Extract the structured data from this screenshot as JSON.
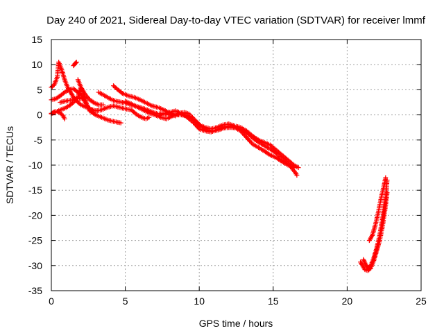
{
  "chart_data": {
    "type": "scatter",
    "title": "Day 240 of 2021, Sidereal Day-to-day VTEC variation (SDTVAR) for receiver lmmf",
    "xlabel": "GPS time / hours",
    "ylabel": "SDTVAR / TECUs",
    "xlim": [
      0,
      25
    ],
    "ylim": [
      -35,
      15
    ],
    "xticks": [
      0,
      5,
      10,
      15,
      20,
      25
    ],
    "yticks": [
      15,
      10,
      5,
      0,
      -5,
      -10,
      -15,
      -20,
      -25,
      -30,
      -35
    ],
    "grid": true,
    "marker": "+",
    "series": [
      {
        "name": "SDTVAR",
        "color": "#ff0000",
        "tracks": [
          [
            [
              0.0,
              5.5
            ],
            [
              0.2,
              6.0
            ],
            [
              0.4,
              7.5
            ],
            [
              0.5,
              10.5
            ],
            [
              0.7,
              9.0
            ],
            [
              0.9,
              7.0
            ],
            [
              1.1,
              5.5
            ],
            [
              1.3,
              4.5
            ],
            [
              1.5,
              3.5
            ],
            [
              1.7,
              2.8
            ],
            [
              2.0,
              2.0
            ],
            [
              2.3,
              1.6
            ],
            [
              2.6,
              1.3
            ]
          ],
          [
            [
              0.0,
              3.0
            ],
            [
              0.3,
              3.2
            ],
            [
              0.6,
              3.8
            ],
            [
              0.9,
              4.5
            ],
            [
              1.2,
              5.0
            ],
            [
              1.5,
              5.2
            ],
            [
              1.8,
              4.5
            ],
            [
              2.0,
              4.0
            ],
            [
              2.2,
              3.0
            ],
            [
              2.4,
              2.0
            ],
            [
              2.6,
              1.2
            ],
            [
              2.9,
              0.8
            ],
            [
              3.2,
              0.9
            ]
          ],
          [
            [
              0.0,
              0.3
            ],
            [
              0.3,
              0.5
            ],
            [
              0.6,
              1.0
            ],
            [
              0.9,
              1.3
            ],
            [
              1.2,
              1.8
            ],
            [
              1.5,
              2.5
            ],
            [
              1.8,
              3.5
            ],
            [
              2.0,
              5.5
            ],
            [
              2.2,
              4.0
            ],
            [
              2.4,
              2.0
            ],
            [
              2.6,
              0.8
            ],
            [
              2.8,
              0.5
            ]
          ],
          [
            [
              0.0,
              0.2
            ],
            [
              0.2,
              0.6
            ],
            [
              0.4,
              0.7
            ],
            [
              0.6,
              0.4
            ],
            [
              0.8,
              -0.2
            ],
            [
              0.9,
              -0.8
            ]
          ],
          [
            [
              1.5,
              9.8
            ],
            [
              1.6,
              10.2
            ],
            [
              1.7,
              10.5
            ]
          ],
          [
            [
              0.6,
              2.5
            ],
            [
              0.9,
              2.7
            ],
            [
              1.2,
              2.9
            ],
            [
              1.5,
              3.0
            ],
            [
              1.8,
              3.3
            ],
            [
              2.1,
              3.2
            ]
          ],
          [
            [
              1.8,
              7.0
            ],
            [
              2.0,
              5.5
            ],
            [
              2.3,
              4.0
            ],
            [
              2.6,
              3.0
            ],
            [
              2.9,
              2.4
            ],
            [
              3.2,
              2.0
            ],
            [
              3.5,
              2.0
            ]
          ],
          [
            [
              3.2,
              4.5
            ],
            [
              3.5,
              4.0
            ],
            [
              3.8,
              3.5
            ],
            [
              4.1,
              3.0
            ],
            [
              4.4,
              2.7
            ],
            [
              4.8,
              2.5
            ],
            [
              5.2,
              2.2
            ],
            [
              5.6,
              1.8
            ],
            [
              6.0,
              1.5
            ],
            [
              6.4,
              1.1
            ],
            [
              6.8,
              0.6
            ],
            [
              7.2,
              0.2
            ],
            [
              7.6,
              0.3
            ],
            [
              8.0,
              0.0
            ],
            [
              8.4,
              -0.2
            ]
          ],
          [
            [
              2.4,
              1.5
            ],
            [
              2.6,
              1.2
            ],
            [
              3.0,
              0.8
            ],
            [
              3.4,
              1.0
            ],
            [
              3.8,
              1.5
            ],
            [
              4.2,
              1.8
            ],
            [
              4.6,
              1.5
            ],
            [
              5.0,
              1.2
            ],
            [
              5.4,
              1.0
            ],
            [
              5.8,
              0.0
            ],
            [
              6.1,
              -0.5
            ],
            [
              6.4,
              -0.8
            ],
            [
              6.6,
              -0.5
            ]
          ],
          [
            [
              2.6,
              0.8
            ],
            [
              3.0,
              0.0
            ],
            [
              3.4,
              -0.5
            ],
            [
              3.8,
              -1.0
            ],
            [
              4.2,
              -1.3
            ],
            [
              4.7,
              -1.6
            ]
          ],
          [
            [
              4.2,
              5.8
            ],
            [
              4.5,
              5.0
            ],
            [
              4.8,
              4.3
            ],
            [
              5.2,
              3.8
            ],
            [
              5.6,
              3.5
            ],
            [
              6.0,
              3.0
            ],
            [
              6.4,
              2.4
            ],
            [
              6.8,
              1.8
            ],
            [
              7.2,
              1.5
            ],
            [
              7.6,
              1.0
            ],
            [
              8.0,
              0.4
            ],
            [
              8.4,
              0.0
            ],
            [
              8.8,
              0.0
            ],
            [
              9.2,
              -0.2
            ],
            [
              9.6,
              -1.0
            ],
            [
              10.0,
              -2.0
            ],
            [
              10.4,
              -2.5
            ],
            [
              10.8,
              -2.8
            ],
            [
              11.2,
              -2.5
            ],
            [
              11.6,
              -2.0
            ],
            [
              12.0,
              -1.8
            ],
            [
              12.4,
              -2.2
            ],
            [
              12.8,
              -2.5
            ],
            [
              13.2,
              -3.2
            ],
            [
              13.6,
              -4.2
            ],
            [
              14.0,
              -5.0
            ],
            [
              14.4,
              -5.5
            ],
            [
              14.8,
              -6.0
            ],
            [
              15.2,
              -7.0
            ],
            [
              15.6,
              -8.0
            ],
            [
              16.0,
              -9.0
            ],
            [
              16.4,
              -10.0
            ],
            [
              16.7,
              -10.5
            ]
          ],
          [
            [
              5.0,
              2.7
            ],
            [
              5.4,
              2.2
            ],
            [
              5.8,
              1.6
            ],
            [
              6.2,
              1.0
            ],
            [
              6.6,
              0.4
            ],
            [
              7.0,
              0.0
            ],
            [
              7.4,
              -0.5
            ],
            [
              7.8,
              -0.8
            ],
            [
              8.2,
              -0.2
            ],
            [
              8.6,
              0.3
            ],
            [
              9.0,
              0.5
            ],
            [
              9.3,
              0.2
            ],
            [
              9.7,
              -1.0
            ],
            [
              10.1,
              -2.2
            ],
            [
              10.5,
              -3.0
            ],
            [
              10.9,
              -3.2
            ],
            [
              11.3,
              -3.0
            ],
            [
              11.7,
              -2.6
            ],
            [
              12.1,
              -2.5
            ],
            [
              12.5,
              -2.6
            ],
            [
              12.9,
              -3.0
            ],
            [
              13.3,
              -3.8
            ],
            [
              13.7,
              -4.8
            ],
            [
              14.1,
              -5.6
            ],
            [
              14.5,
              -6.3
            ],
            [
              14.9,
              -7.0
            ],
            [
              15.3,
              -7.8
            ],
            [
              15.7,
              -9.0
            ],
            [
              16.1,
              -10.0
            ],
            [
              16.5,
              -11.5
            ],
            [
              16.6,
              -12.0
            ]
          ],
          [
            [
              7.2,
              -0.2
            ],
            [
              7.6,
              0.2
            ],
            [
              8.0,
              0.5
            ],
            [
              8.4,
              0.8
            ],
            [
              8.8,
              0.3
            ],
            [
              9.2,
              -0.5
            ],
            [
              9.6,
              -1.5
            ],
            [
              10.0,
              -2.8
            ],
            [
              10.4,
              -3.2
            ],
            [
              10.8,
              -3.4
            ],
            [
              11.2,
              -3.0
            ],
            [
              11.6,
              -2.5
            ],
            [
              12.0,
              -2.2
            ],
            [
              12.4,
              -2.5
            ],
            [
              12.8,
              -3.2
            ],
            [
              13.2,
              -4.5
            ],
            [
              13.6,
              -5.8
            ],
            [
              14.0,
              -6.5
            ],
            [
              14.4,
              -7.2
            ],
            [
              14.8,
              -8.0
            ],
            [
              15.2,
              -8.5
            ],
            [
              15.6,
              -9.3
            ],
            [
              16.0,
              -10.0
            ],
            [
              16.4,
              -10.5
            ]
          ],
          [
            [
              21.1,
              -28.8
            ],
            [
              21.2,
              -29.5
            ],
            [
              21.4,
              -30.5
            ],
            [
              21.6,
              -30.0
            ],
            [
              21.8,
              -28.5
            ],
            [
              22.0,
              -26.5
            ],
            [
              22.2,
              -24.0
            ],
            [
              22.4,
              -20.5
            ],
            [
              22.6,
              -16.5
            ],
            [
              22.7,
              -13.0
            ]
          ],
          [
            [
              20.9,
              -29.3
            ],
            [
              21.0,
              -29.8
            ],
            [
              21.2,
              -30.8
            ],
            [
              21.4,
              -31.0
            ],
            [
              21.6,
              -30.5
            ],
            [
              21.8,
              -29.0
            ],
            [
              22.0,
              -27.0
            ],
            [
              22.2,
              -25.0
            ],
            [
              22.4,
              -22.0
            ],
            [
              22.6,
              -18.0
            ],
            [
              22.7,
              -15.5
            ]
          ],
          [
            [
              21.5,
              -25.0
            ],
            [
              21.7,
              -24.0
            ],
            [
              21.9,
              -22.0
            ],
            [
              22.1,
              -19.5
            ],
            [
              22.3,
              -16.5
            ],
            [
              22.5,
              -14.0
            ],
            [
              22.6,
              -12.5
            ]
          ]
        ]
      }
    ]
  }
}
